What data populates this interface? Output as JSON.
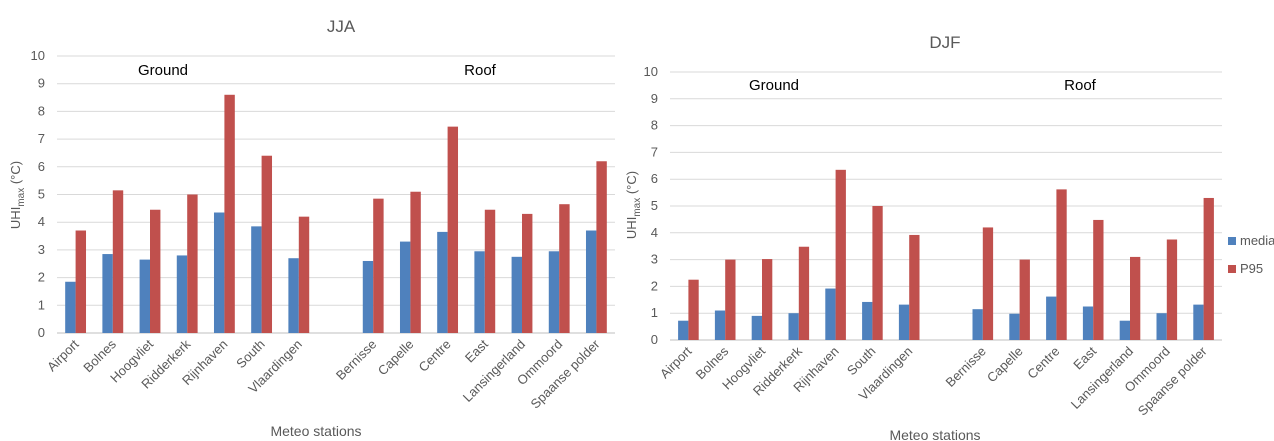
{
  "colors": {
    "mediar": "#4f81bd",
    "P95": "#c0504d",
    "grid": "#d9d9d9",
    "axis": "#bfbfbf"
  },
  "chart_data": [
    {
      "type": "bar",
      "title": "JJA",
      "xlabel": "Meteo stations",
      "ylabel": "UHI",
      "ylabel_sub": "max",
      "ylabel_unit": " (°C)",
      "ylim": [
        0,
        10
      ],
      "yticks": [
        "0",
        "1",
        "2",
        "3",
        "4",
        "5",
        "6",
        "7",
        "8",
        "9",
        "10"
      ],
      "group_labels": [
        "Ground",
        "Roof"
      ],
      "categories": [
        "Airport",
        "Bolnes",
        "Hoogvliet",
        "Ridderkerk",
        "Rijnhaven",
        "South",
        "Vlaardingen",
        "",
        "Bernisse",
        "Capelle",
        "Centre",
        "East",
        "Lansingerland",
        "Ommoord",
        "Spaanse polder"
      ],
      "series": [
        {
          "name": "mediar",
          "values": [
            1.85,
            2.85,
            2.65,
            2.8,
            4.35,
            3.85,
            2.7,
            null,
            2.6,
            3.3,
            3.65,
            2.95,
            2.75,
            2.95,
            3.7
          ]
        },
        {
          "name": "P95",
          "values": [
            3.7,
            5.15,
            4.45,
            5.0,
            8.6,
            6.4,
            4.2,
            null,
            4.85,
            5.1,
            7.45,
            4.45,
            4.3,
            4.65,
            6.2
          ]
        }
      ]
    },
    {
      "type": "bar",
      "title": "DJF",
      "xlabel": "Meteo stations",
      "ylabel": "UHI",
      "ylabel_sub": "max",
      "ylabel_unit": " (°C)",
      "ylim": [
        0,
        10
      ],
      "yticks": [
        "0",
        "1",
        "2",
        "3",
        "4",
        "5",
        "6",
        "7",
        "8",
        "9",
        "10"
      ],
      "group_labels": [
        "Ground",
        "Roof"
      ],
      "categories": [
        "Airport",
        "Bolnes",
        "Hoogvliet",
        "Ridderkerk",
        "Rijnhaven",
        "South",
        "Vlaardingen",
        "",
        "Bernisse",
        "Capelle",
        "Centre",
        "East",
        "Lansingerland",
        "Ommoord",
        "Spaanse polder"
      ],
      "series": [
        {
          "name": "mediar",
          "values": [
            0.72,
            1.1,
            0.9,
            1.0,
            1.92,
            1.42,
            1.32,
            null,
            1.15,
            0.98,
            1.62,
            1.25,
            0.72,
            1.0,
            1.32
          ]
        },
        {
          "name": "P95",
          "values": [
            2.25,
            3.0,
            3.02,
            3.48,
            6.35,
            5.0,
            3.92,
            null,
            4.2,
            3.0,
            5.62,
            4.48,
            3.1,
            3.75,
            5.3
          ]
        }
      ],
      "legend": {
        "placement": "right",
        "entries": [
          "mediar",
          "P95"
        ]
      }
    }
  ]
}
